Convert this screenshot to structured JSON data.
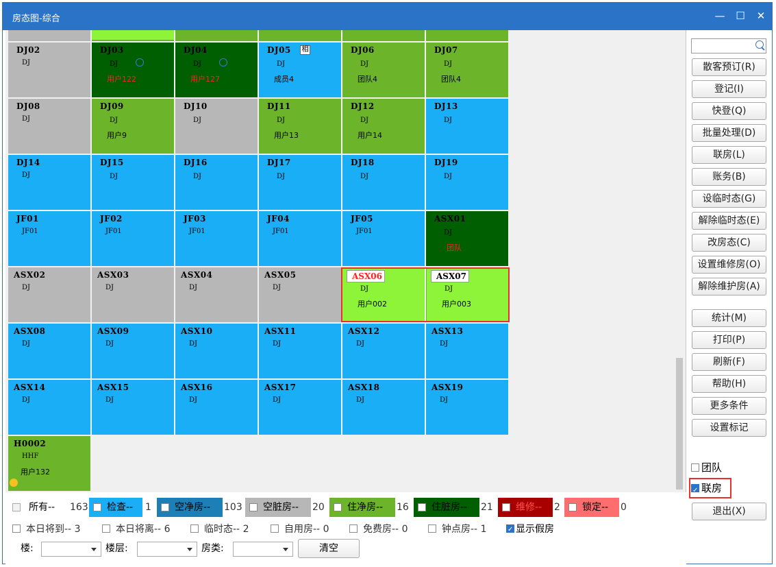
{
  "window": {
    "title": "房态图-综合",
    "min_glyph": "—",
    "max_glyph": "☐",
    "close_glyph": "✕"
  },
  "colors": {
    "gray": "#b7b7b7",
    "blue": "#19aef5",
    "lightgreen": "#6cb52a",
    "darkgreen": "#005f00",
    "limegreen": "#8ef43a",
    "red_text": "#ff2020"
  },
  "rooms": [
    {
      "num": "DJ02",
      "cls": "DJ",
      "guest": ""
    },
    {
      "num": "DJ03",
      "cls": "DJ",
      "guest": "用户122"
    },
    {
      "num": "DJ04",
      "cls": "DJ",
      "guest": "用户127"
    },
    {
      "num": "DJ05",
      "cls": "DJ",
      "guest": "成员4",
      "flag": "相"
    },
    {
      "num": "DJ06",
      "cls": "DJ",
      "guest": "团队4"
    },
    {
      "num": "DJ07",
      "cls": "DJ",
      "guest": "团队4"
    },
    {
      "num": "DJ08",
      "cls": "DJ",
      "guest": ""
    },
    {
      "num": "DJ09",
      "cls": "DJ",
      "guest": "用户9"
    },
    {
      "num": "DJ10",
      "cls": "DJ",
      "guest": ""
    },
    {
      "num": "DJ11",
      "cls": "DJ",
      "guest": "用户13"
    },
    {
      "num": "DJ12",
      "cls": "DJ",
      "guest": "用户14"
    },
    {
      "num": "DJ13",
      "cls": "DJ",
      "guest": ""
    },
    {
      "num": "DJ14",
      "cls": "DJ",
      "guest": ""
    },
    {
      "num": "DJ15",
      "cls": "DJ",
      "guest": ""
    },
    {
      "num": "DJ16",
      "cls": "DJ",
      "guest": ""
    },
    {
      "num": "DJ17",
      "cls": "DJ",
      "guest": ""
    },
    {
      "num": "DJ18",
      "cls": "DJ",
      "guest": ""
    },
    {
      "num": "DJ19",
      "cls": "DJ",
      "guest": ""
    },
    {
      "num": "JF01",
      "cls": "JF01",
      "guest": ""
    },
    {
      "num": "JF02",
      "cls": "JF01",
      "guest": ""
    },
    {
      "num": "JF03",
      "cls": "JF01",
      "guest": ""
    },
    {
      "num": "JF04",
      "cls": "JF01",
      "guest": ""
    },
    {
      "num": "JF05",
      "cls": "JF01",
      "guest": ""
    },
    {
      "num": "ASX01",
      "cls": "DJ",
      "guest": "团队"
    },
    {
      "num": "ASX02",
      "cls": "DJ",
      "guest": ""
    },
    {
      "num": "ASX03",
      "cls": "DJ",
      "guest": ""
    },
    {
      "num": "ASX04",
      "cls": "DJ",
      "guest": ""
    },
    {
      "num": "ASX05",
      "cls": "DJ",
      "guest": ""
    },
    {
      "num": "ASX06",
      "cls": "DJ",
      "guest": "用户002"
    },
    {
      "num": "ASX07",
      "cls": "DJ",
      "guest": "用户003"
    },
    {
      "num": "ASX08",
      "cls": "DJ",
      "guest": ""
    },
    {
      "num": "ASX09",
      "cls": "DJ",
      "guest": ""
    },
    {
      "num": "ASX10",
      "cls": "DJ",
      "guest": ""
    },
    {
      "num": "ASX11",
      "cls": "DJ",
      "guest": ""
    },
    {
      "num": "ASX12",
      "cls": "DJ",
      "guest": ""
    },
    {
      "num": "ASX13",
      "cls": "DJ",
      "guest": ""
    },
    {
      "num": "ASX14",
      "cls": "DJ",
      "guest": ""
    },
    {
      "num": "ASX15",
      "cls": "DJ",
      "guest": ""
    },
    {
      "num": "ASX16",
      "cls": "DJ",
      "guest": ""
    },
    {
      "num": "ASX17",
      "cls": "DJ",
      "guest": ""
    },
    {
      "num": "ASX18",
      "cls": "DJ",
      "guest": ""
    },
    {
      "num": "ASX19",
      "cls": "DJ",
      "guest": ""
    },
    {
      "num": "H0002",
      "cls": "HHF",
      "guest": "用户132"
    }
  ],
  "sidebar": {
    "search_placeholder": "",
    "buttons": [
      "散客预订(R)",
      "登记(I)",
      "快登(Q)",
      "批量处理(D)",
      "联房(L)",
      "账务(B)",
      "设临时态(G)",
      "解除临时态(E)",
      "改房态(C)",
      "设置维修房(O)",
      "解除维护房(A)",
      "统计(M)",
      "打印(P)",
      "刷新(F)",
      "帮助(H)",
      "更多条件",
      "设置标记"
    ],
    "team_label": "团队",
    "link_label": "联房",
    "exit_label": "退出(X)"
  },
  "legend": {
    "row1": [
      {
        "label": "所有--",
        "count": "163"
      },
      {
        "label": "检查--",
        "count": "1"
      },
      {
        "label": "空净房--",
        "count": "103"
      },
      {
        "label": "空脏房--",
        "count": "20"
      },
      {
        "label": "住净房--",
        "count": "16"
      },
      {
        "label": "住脏房--",
        "count": "21"
      },
      {
        "label": "维修--",
        "count": "2"
      },
      {
        "label": "锁定--",
        "count": "0"
      }
    ],
    "row2": [
      {
        "label": "本日将到--",
        "count": "3"
      },
      {
        "label": "本日将离--",
        "count": "6"
      },
      {
        "label": "临时态--",
        "count": "2"
      },
      {
        "label": "自用房--",
        "count": "0"
      },
      {
        "label": "免费房--",
        "count": "0"
      },
      {
        "label": "钟点房--",
        "count": "1"
      },
      {
        "label": "显示假房",
        "count": ""
      }
    ],
    "filters": {
      "building": "楼:",
      "floor": "楼层:",
      "roomtype": "房类:",
      "clear": "清空"
    }
  }
}
